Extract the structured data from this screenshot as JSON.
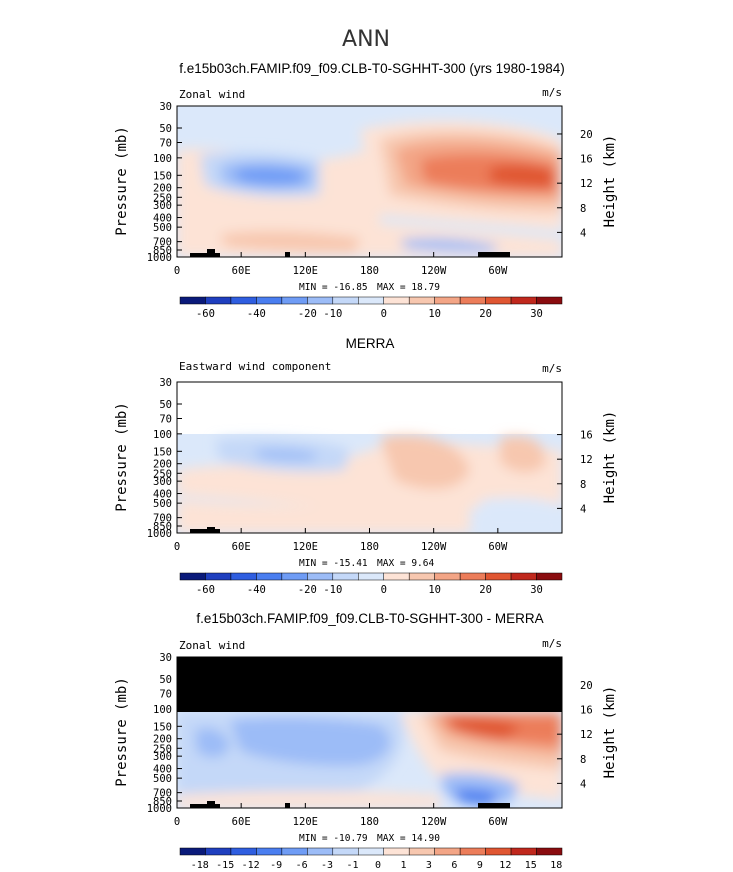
{
  "figure": {
    "title": "ANN",
    "colors": {
      "cbar_wind": [
        "#0a1a7a",
        "#1f3fbf",
        "#2f5ee0",
        "#4a7ef0",
        "#6f9cf5",
        "#9cbcf7",
        "#c4d8f8",
        "#dbe8fa",
        "#fde3d6",
        "#f7c7af",
        "#f3a586",
        "#ec7d5a",
        "#e05632",
        "#c0281d",
        "#8a0c0f"
      ],
      "cbar_diff": [
        "#0a1a7a",
        "#1f3fbf",
        "#2f5ee0",
        "#4a7ef0",
        "#6f9cf5",
        "#9cbcf7",
        "#c4d8f8",
        "#dbe8fa",
        "#fde3d6",
        "#f7c7af",
        "#f3a586",
        "#ec7d5a",
        "#e05632",
        "#c0281d",
        "#8a0c0f"
      ]
    }
  },
  "chart_data": [
    {
      "type": "contour",
      "title": "f.e15b03ch.FAMIP.f09_f09.CLB-T0-SGHHT-300 (yrs 1980-1984)",
      "left_label": "Zonal wind",
      "right_label": "m/s",
      "ylabel": "Pressure (mb)",
      "y2label": "Height (km)",
      "pressure_ticks": [
        30,
        50,
        70,
        100,
        150,
        200,
        250,
        300,
        400,
        500,
        700,
        850,
        1000
      ],
      "height_ticks": [
        20,
        16,
        12,
        8,
        4
      ],
      "x_ticks": [
        "0",
        "60E",
        "120E",
        "180",
        "120W",
        "60W"
      ],
      "xlim": [
        0,
        360
      ],
      "ylim": [
        1000,
        30
      ],
      "y_scale": "log",
      "min_label": "MIN = -16.85",
      "max_label": "MAX = 18.79",
      "min": -16.85,
      "max": 18.79,
      "colorbar_ticks": [
        "-60",
        "-40",
        "-20",
        "-10",
        "0",
        "10",
        "20",
        "30"
      ],
      "contour_levels": [
        -60,
        -50,
        -40,
        -30,
        -20,
        -15,
        -10,
        -5,
        0,
        5,
        10,
        15,
        20,
        25,
        30
      ]
    },
    {
      "type": "contour",
      "title": "MERRA",
      "left_label": "Eastward wind component",
      "right_label": "m/s",
      "ylabel": "Pressure (mb)",
      "y2label": "Height (km)",
      "pressure_ticks": [
        30,
        50,
        70,
        100,
        150,
        200,
        250,
        300,
        400,
        500,
        700,
        850,
        1000
      ],
      "height_ticks": [
        16,
        12,
        8,
        4
      ],
      "x_ticks": [
        "0",
        "60E",
        "120E",
        "180",
        "120W",
        "60W"
      ],
      "xlim": [
        0,
        360
      ],
      "ylim": [
        1000,
        30
      ],
      "y_scale": "log",
      "min_label": "MIN = -15.41",
      "max_label": "MAX =   9.64",
      "min": -15.41,
      "max": 9.64,
      "colorbar_ticks": [
        "-60",
        "-40",
        "-20",
        "-10",
        "0",
        "10",
        "20",
        "30"
      ],
      "contour_levels": [
        -60,
        -50,
        -40,
        -30,
        -20,
        -15,
        -10,
        -5,
        0,
        5,
        10,
        15,
        20,
        25,
        30
      ]
    },
    {
      "type": "contour",
      "title": "f.e15b03ch.FAMIP.f09_f09.CLB-T0-SGHHT-300 - MERRA",
      "left_label": "Zonal wind",
      "right_label": "m/s",
      "ylabel": "Pressure (mb)",
      "y2label": "Height (km)",
      "pressure_ticks": [
        30,
        50,
        70,
        100,
        150,
        200,
        250,
        300,
        400,
        500,
        700,
        850,
        1000
      ],
      "height_ticks": [
        20,
        16,
        12,
        8,
        4
      ],
      "x_ticks": [
        "0",
        "60E",
        "120E",
        "180",
        "120W",
        "60W"
      ],
      "xlim": [
        0,
        360
      ],
      "ylim": [
        1000,
        30
      ],
      "y_scale": "log",
      "min_label": "MIN = -10.79",
      "max_label": "MAX =  14.90",
      "min": -10.79,
      "max": 14.9,
      "colorbar_ticks": [
        "-18",
        "-15",
        "-12",
        "-9",
        "-6",
        "-3",
        "-1",
        "0",
        "1",
        "3",
        "6",
        "9",
        "12",
        "15",
        "18"
      ],
      "contour_levels": [
        -18,
        -15,
        -12,
        -9,
        -6,
        -3,
        -1,
        0,
        1,
        3,
        6,
        9,
        12,
        15,
        18
      ]
    }
  ]
}
